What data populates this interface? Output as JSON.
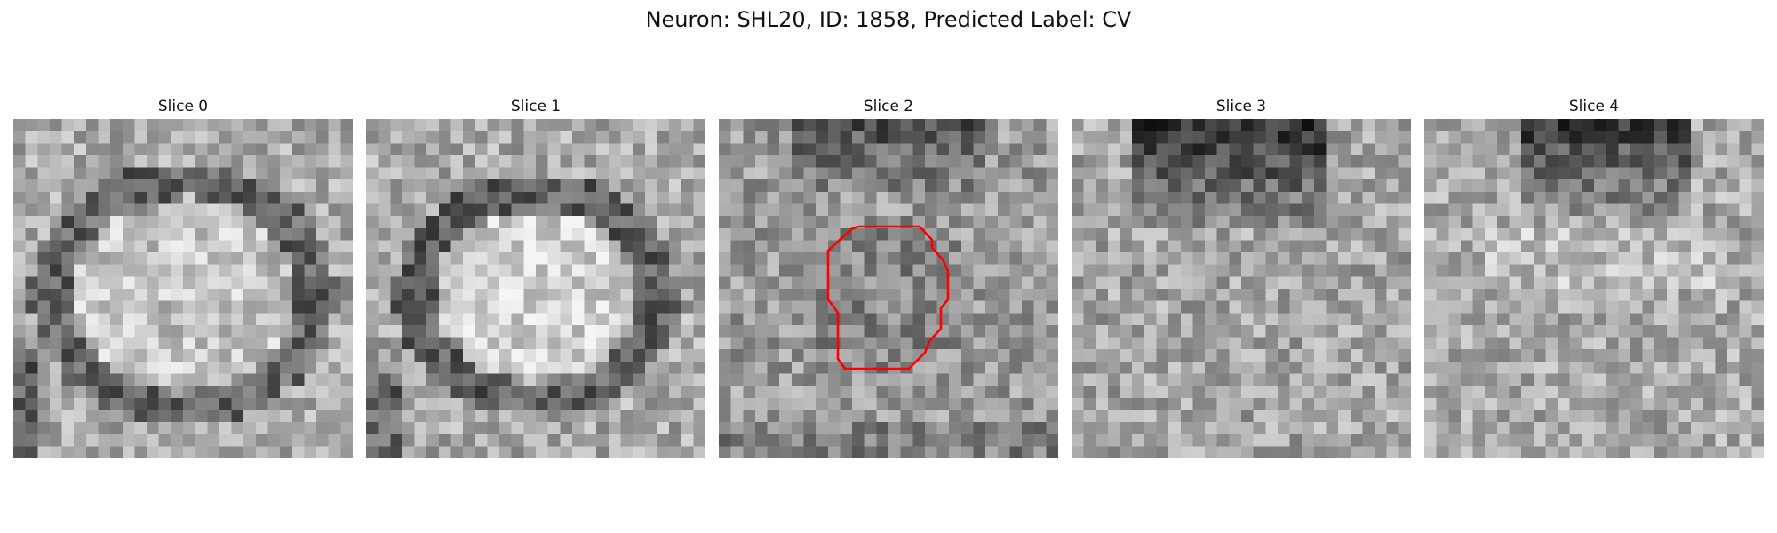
{
  "figure": {
    "title": "Neuron: SHL20, ID: 1858, Predicted Label: CV"
  },
  "panels": [
    {
      "title": "Slice 0",
      "kind": "ring",
      "seed": 11
    },
    {
      "title": "Slice 1",
      "kind": "ring-bright",
      "seed": 23
    },
    {
      "title": "Slice 2",
      "kind": "dark-top",
      "seed": 37,
      "contour_color": "#ff0000"
    },
    {
      "title": "Slice 3",
      "kind": "dark-top-strong",
      "seed": 41
    },
    {
      "title": "Slice 4",
      "kind": "dark-top-soft",
      "seed": 53
    }
  ],
  "grid_size": 28
}
